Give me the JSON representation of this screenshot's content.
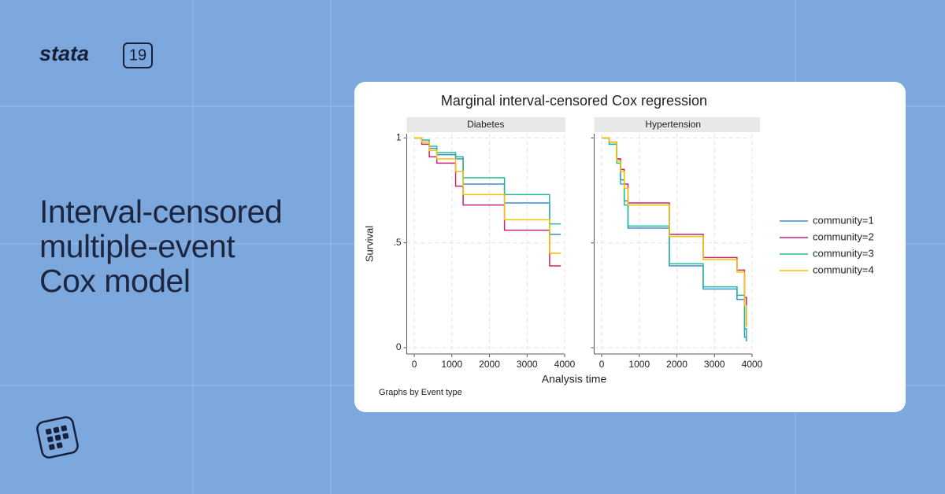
{
  "brand": {
    "name": "stata",
    "version": "19"
  },
  "headline": [
    "Interval-censored",
    "multiple-event",
    "Cox model"
  ],
  "figure": {
    "title": "Marginal interval-censored Cox regression",
    "y_label": "Survival",
    "x_label": "Analysis time",
    "note": "Graphs by Event type"
  },
  "chart_data": [
    {
      "type": "step",
      "subtitle": "Diabetes",
      "x": [
        0,
        200,
        400,
        600,
        1100,
        1300,
        2400,
        3600,
        3900
      ],
      "series": [
        {
          "name": "community=1",
          "color": "#3a8ecf",
          "values": [
            1,
            0.98,
            0.95,
            0.92,
            0.9,
            0.78,
            0.69,
            0.54,
            0.54
          ]
        },
        {
          "name": "community=2",
          "color": "#c0267a",
          "values": [
            1,
            0.97,
            0.91,
            0.88,
            0.77,
            0.68,
            0.56,
            0.39,
            0.39
          ]
        },
        {
          "name": "community=3",
          "color": "#26b79a",
          "values": [
            1,
            0.99,
            0.96,
            0.93,
            0.91,
            0.81,
            0.73,
            0.59,
            0.59
          ]
        },
        {
          "name": "community=4",
          "color": "#f4c400",
          "values": [
            1,
            0.98,
            0.94,
            0.9,
            0.84,
            0.73,
            0.61,
            0.45,
            0.45
          ]
        }
      ],
      "xlim": [
        -200,
        4000
      ],
      "ylim": [
        -0.03,
        1.02
      ],
      "xticks": [
        0,
        1000,
        2000,
        3000,
        4000
      ],
      "yticks": [
        0,
        {
          "value": 0.5,
          "label": ".5"
        },
        1
      ],
      "grid": true
    },
    {
      "type": "step",
      "subtitle": "Hypertension",
      "x": [
        0,
        200,
        400,
        500,
        600,
        700,
        1800,
        2700,
        3600,
        3800,
        3850
      ],
      "series": [
        {
          "name": "community=1",
          "color": "#3a8ecf",
          "values": [
            1,
            0.97,
            0.9,
            0.8,
            0.7,
            0.57,
            0.39,
            0.28,
            0.23,
            0.05,
            0.03
          ]
        },
        {
          "name": "community=2",
          "color": "#c0267a",
          "values": [
            1,
            0.98,
            0.9,
            0.85,
            0.78,
            0.69,
            0.54,
            0.43,
            0.37,
            0.24,
            0.1
          ]
        },
        {
          "name": "community=3",
          "color": "#26b79a",
          "values": [
            1,
            0.97,
            0.88,
            0.78,
            0.68,
            0.58,
            0.4,
            0.29,
            0.25,
            0.09,
            0.03
          ]
        },
        {
          "name": "community=4",
          "color": "#f4c400",
          "values": [
            1,
            0.98,
            0.89,
            0.84,
            0.76,
            0.68,
            0.53,
            0.42,
            0.36,
            0.2,
            0.1
          ]
        }
      ],
      "xlim": [
        -200,
        4000
      ],
      "ylim": [
        -0.03,
        1.02
      ],
      "xticks": [
        0,
        1000,
        2000,
        3000,
        4000
      ],
      "yticks": [
        0,
        0.5,
        1
      ],
      "grid": true
    }
  ]
}
